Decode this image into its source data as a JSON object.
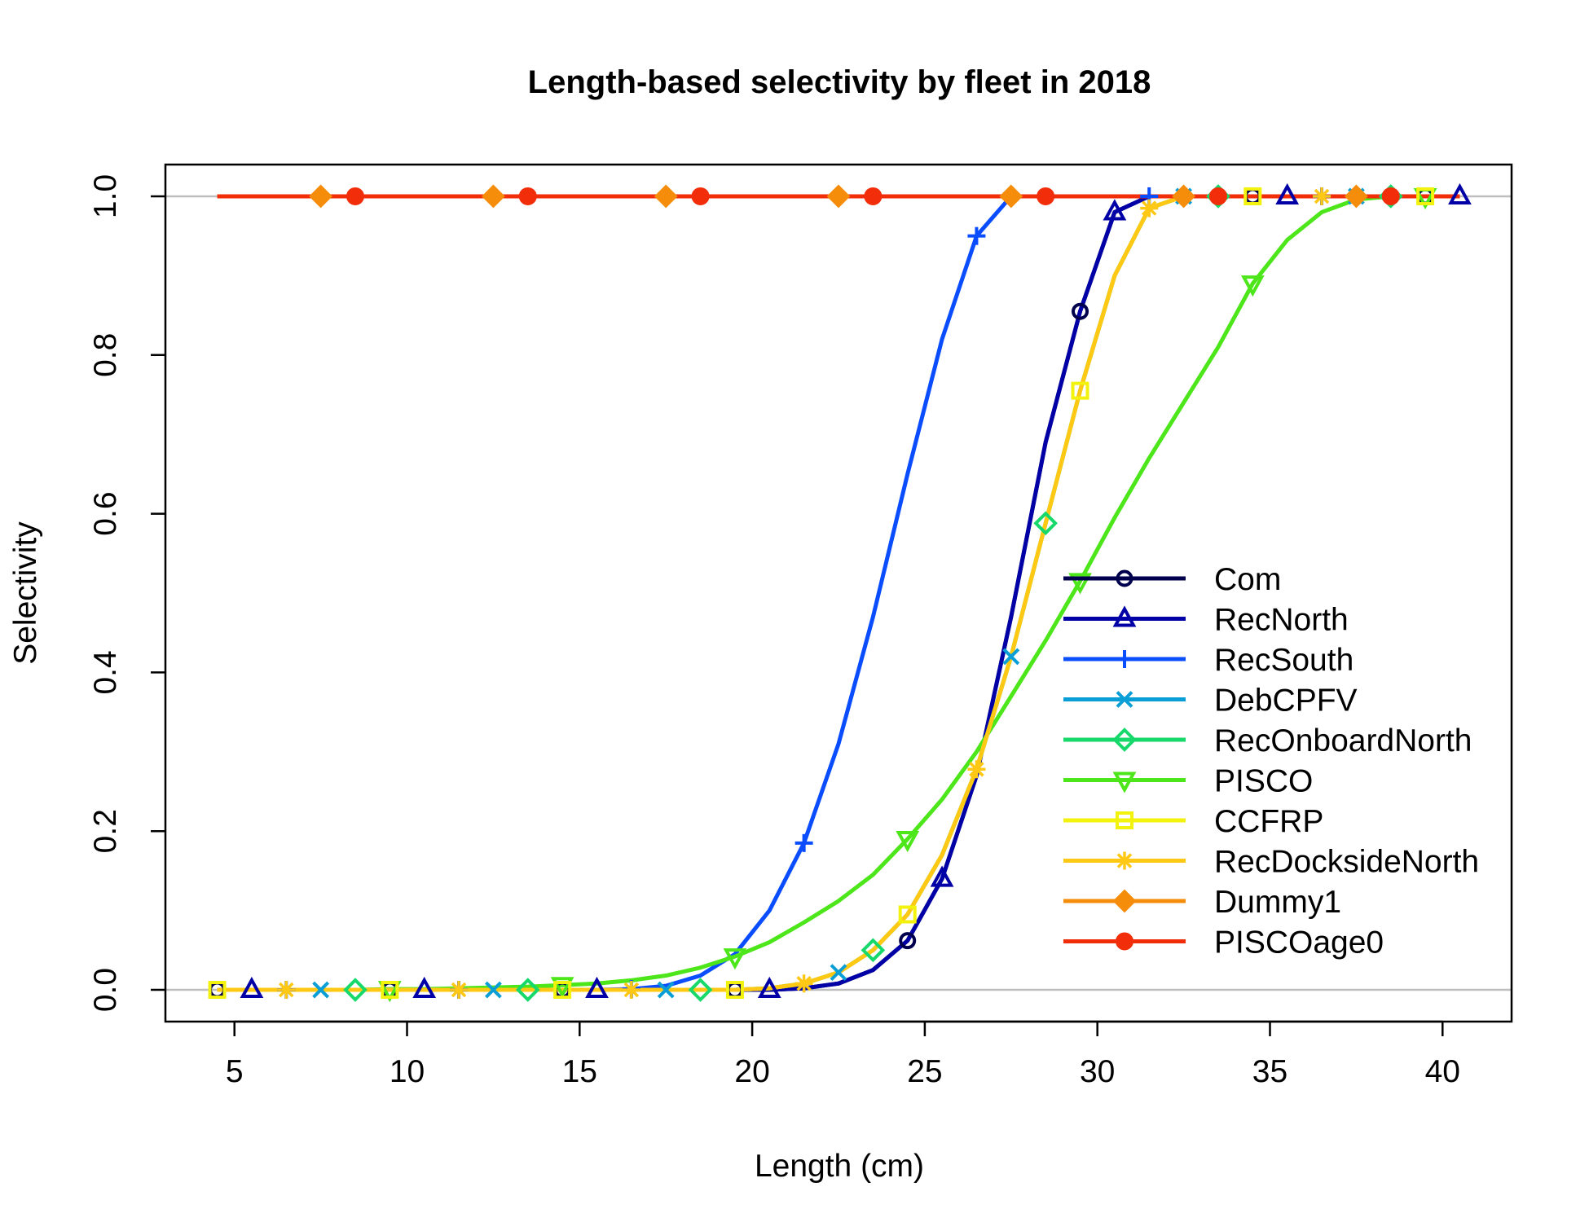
{
  "chart_data": {
    "type": "line",
    "title": "Length-based selectivity by fleet in 2018",
    "xlabel": "Length (cm)",
    "ylabel": "Selectivity",
    "xlim": [
      3,
      42
    ],
    "ylim": [
      -0.04,
      1.04
    ],
    "xticks": [
      5,
      10,
      15,
      20,
      25,
      30,
      35,
      40
    ],
    "xtick_labels": [
      "5",
      "10",
      "15",
      "20",
      "25",
      "30",
      "35",
      "40"
    ],
    "yticks": [
      0,
      0.2,
      0.4,
      0.6,
      0.8,
      1
    ],
    "ytick_labels": [
      "0.0",
      "0.2",
      "0.4",
      "0.6",
      "0.8",
      "1.0"
    ],
    "reference_lines": [
      0,
      1
    ],
    "reference_line_color": "#bebebe",
    "grid": false,
    "legend_position": "right",
    "x": [
      4.5,
      5.5,
      6.5,
      7.5,
      8.5,
      9.5,
      10.5,
      11.5,
      12.5,
      13.5,
      14.5,
      15.5,
      16.5,
      17.5,
      18.5,
      19.5,
      20.5,
      21.5,
      22.5,
      23.5,
      24.5,
      25.5,
      26.5,
      27.5,
      28.5,
      29.5,
      30.5,
      31.5,
      32.5,
      33.5,
      34.5,
      35.5,
      36.5,
      37.5,
      38.5,
      39.5,
      40.5
    ],
    "series": [
      {
        "name": "Com",
        "color": "#00004d",
        "marker": "circle",
        "marker_offset": 0,
        "values": [
          0,
          0,
          0,
          0,
          0,
          0,
          0,
          0,
          0,
          0,
          0,
          0,
          0,
          0,
          0,
          0,
          0,
          0.002,
          0.008,
          0.025,
          0.062,
          0.14,
          0.27,
          0.47,
          0.69,
          0.855,
          0.98,
          1,
          1,
          1,
          1,
          1,
          1,
          1,
          1,
          1,
          1
        ]
      },
      {
        "name": "RecNorth",
        "color": "#0000a6",
        "marker": "triangle-up",
        "marker_offset": 1,
        "values": [
          0,
          0,
          0,
          0,
          0,
          0,
          0,
          0,
          0,
          0,
          0,
          0,
          0,
          0,
          0,
          0,
          0,
          0.002,
          0.008,
          0.025,
          0.062,
          0.14,
          0.27,
          0.47,
          0.69,
          0.855,
          0.98,
          1,
          1,
          1,
          1,
          1,
          1,
          1,
          1,
          1,
          1
        ]
      },
      {
        "name": "RecSouth",
        "color": "#0a4dff",
        "marker": "plus",
        "marker_offset": 2,
        "values": [
          0,
          0,
          0,
          0,
          0,
          0,
          0,
          0,
          0,
          0,
          0,
          0,
          0.001,
          0.005,
          0.018,
          0.045,
          0.1,
          0.185,
          0.31,
          0.47,
          0.65,
          0.82,
          0.95,
          1,
          1,
          1,
          1,
          1,
          1,
          1,
          1,
          1,
          1,
          1,
          1,
          1,
          1
        ]
      },
      {
        "name": "DebCPFV",
        "color": "#0a9ed6",
        "marker": "x",
        "marker_offset": 3,
        "values": [
          0,
          0,
          0,
          0,
          0,
          0,
          0,
          0,
          0,
          0,
          0,
          0,
          0,
          0,
          0,
          0,
          0.002,
          0.008,
          0.022,
          0.05,
          0.095,
          0.17,
          0.278,
          0.42,
          0.588,
          0.755,
          0.9,
          0.985,
          1,
          1,
          1,
          1,
          1,
          1,
          1,
          1,
          1
        ]
      },
      {
        "name": "RecOnboardNorth",
        "color": "#17d96b",
        "marker": "diamond",
        "marker_offset": 4,
        "values": [
          0,
          0,
          0,
          0,
          0,
          0,
          0,
          0,
          0,
          0,
          0,
          0,
          0,
          0,
          0,
          0,
          0.002,
          0.008,
          0.022,
          0.05,
          0.095,
          0.17,
          0.278,
          0.42,
          0.588,
          0.755,
          0.9,
          0.985,
          1,
          1,
          1,
          1,
          1,
          1,
          1,
          1,
          1
        ]
      },
      {
        "name": "PISCO",
        "color": "#4de61a",
        "marker": "triangle-down",
        "marker_offset": 5,
        "values": [
          0,
          0,
          0,
          0,
          0,
          0.001,
          0.001,
          0.002,
          0.003,
          0.004,
          0.006,
          0.008,
          0.012,
          0.018,
          0.028,
          0.042,
          0.06,
          0.085,
          0.112,
          0.145,
          0.19,
          0.24,
          0.3,
          0.37,
          0.44,
          0.515,
          0.595,
          0.67,
          0.74,
          0.81,
          0.89,
          0.945,
          0.98,
          0.996,
          1,
          1,
          1
        ]
      },
      {
        "name": "CCFRP",
        "color": "#f2f20d",
        "marker": "square",
        "marker_offset": 0,
        "values": [
          0,
          0,
          0,
          0,
          0,
          0,
          0,
          0,
          0,
          0,
          0,
          0,
          0,
          0,
          0,
          0,
          0.002,
          0.008,
          0.022,
          0.05,
          0.095,
          0.17,
          0.278,
          0.42,
          0.588,
          0.755,
          0.9,
          0.985,
          1,
          1,
          1,
          1,
          1,
          1,
          1,
          1,
          1
        ]
      },
      {
        "name": "RecDocksideNorth",
        "color": "#ffc814",
        "marker": "asterisk",
        "marker_offset": 2,
        "values": [
          0,
          0,
          0,
          0,
          0,
          0,
          0,
          0,
          0,
          0,
          0,
          0,
          0,
          0,
          0,
          0,
          0.002,
          0.008,
          0.022,
          0.05,
          0.095,
          0.17,
          0.278,
          0.42,
          0.588,
          0.755,
          0.9,
          0.985,
          1,
          1,
          1,
          1,
          1,
          1,
          1,
          1,
          1
        ]
      },
      {
        "name": "Dummy1",
        "color": "#f58c0a",
        "marker": "diamond-filled",
        "marker_offset": 3,
        "values": [
          1,
          1,
          1,
          1,
          1,
          1,
          1,
          1,
          1,
          1,
          1,
          1,
          1,
          1,
          1,
          1,
          1,
          1,
          1,
          1,
          1,
          1,
          1,
          1,
          1,
          1,
          1,
          1,
          1,
          1,
          1,
          1,
          1,
          1,
          1,
          1,
          1
        ]
      },
      {
        "name": "PISCOage0",
        "color": "#f22e0a",
        "marker": "circle-filled",
        "marker_offset": 4,
        "values": [
          1,
          1,
          1,
          1,
          1,
          1,
          1,
          1,
          1,
          1,
          1,
          1,
          1,
          1,
          1,
          1,
          1,
          1,
          1,
          1,
          1,
          1,
          1,
          1,
          1,
          1,
          1,
          1,
          1,
          1,
          1,
          1,
          1,
          1,
          1,
          1,
          1
        ]
      }
    ]
  }
}
